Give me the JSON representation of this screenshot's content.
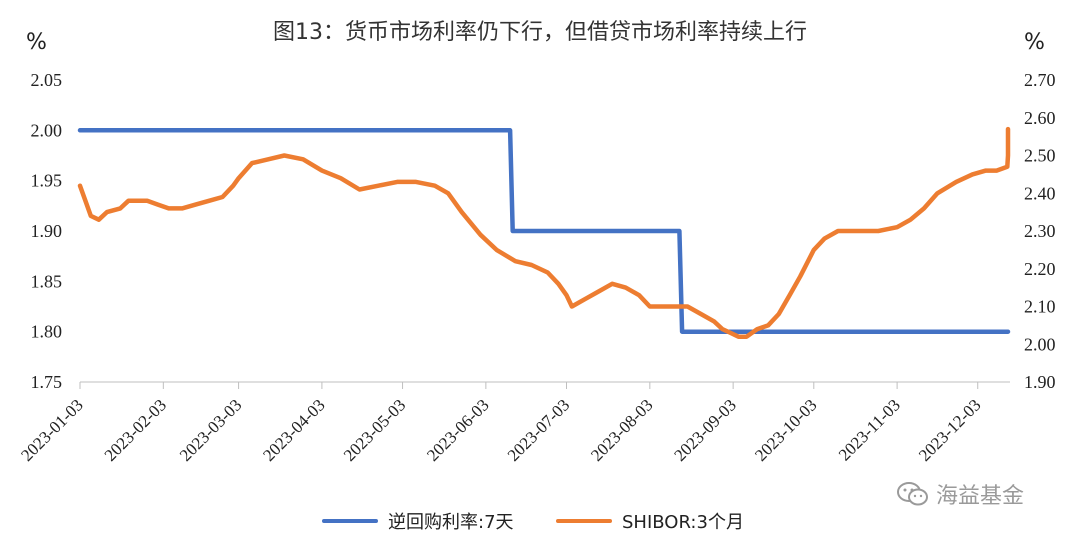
{
  "chart_data": {
    "type": "line",
    "title": "图13：货币市场利率仍下行，但借贷市场利率持续上行",
    "left_axis": {
      "unit": "%",
      "range": [
        1.75,
        2.05
      ],
      "ticks": [
        "1.75",
        "1.80",
        "1.85",
        "1.90",
        "1.95",
        "2.00",
        "2.05"
      ]
    },
    "right_axis": {
      "unit": "%",
      "range": [
        1.9,
        2.7
      ],
      "ticks": [
        "1.90",
        "2.00",
        "2.10",
        "2.20",
        "2.30",
        "2.40",
        "2.50",
        "2.60",
        "2.70"
      ]
    },
    "x_ticks": [
      "2023-01-03",
      "2023-02-03",
      "2023-03-03",
      "2023-04-03",
      "2023-05-03",
      "2023-06-03",
      "2023-07-03",
      "2023-08-03",
      "2023-09-03",
      "2023-10-03",
      "2023-11-03",
      "2023-12-03"
    ],
    "x_range": [
      "2023-01-03",
      "2023-12-15"
    ],
    "grid": true,
    "legend_position": "bottom",
    "series": [
      {
        "name": "逆回购利率:7天",
        "axis": "left",
        "color": "#4472C4",
        "points": [
          [
            "2023-01-03",
            2.0
          ],
          [
            "2023-06-12",
            2.0
          ],
          [
            "2023-06-13",
            1.9
          ],
          [
            "2023-08-14",
            1.9
          ],
          [
            "2023-08-15",
            1.8
          ],
          [
            "2023-12-15",
            1.8
          ]
        ]
      },
      {
        "name": "SHIBOR:3个月",
        "axis": "right",
        "color": "#ED7D31",
        "points": [
          [
            "2023-01-03",
            2.42
          ],
          [
            "2023-01-05",
            2.38
          ],
          [
            "2023-01-07",
            2.34
          ],
          [
            "2023-01-10",
            2.33
          ],
          [
            "2023-01-13",
            2.35
          ],
          [
            "2023-01-18",
            2.36
          ],
          [
            "2023-01-21",
            2.38
          ],
          [
            "2023-01-28",
            2.38
          ],
          [
            "2023-02-01",
            2.37
          ],
          [
            "2023-02-05",
            2.36
          ],
          [
            "2023-02-10",
            2.36
          ],
          [
            "2023-02-15",
            2.37
          ],
          [
            "2023-02-20",
            2.38
          ],
          [
            "2023-02-25",
            2.39
          ],
          [
            "2023-03-01",
            2.42
          ],
          [
            "2023-03-03",
            2.44
          ],
          [
            "2023-03-08",
            2.48
          ],
          [
            "2023-03-14",
            2.49
          ],
          [
            "2023-03-20",
            2.5
          ],
          [
            "2023-03-27",
            2.49
          ],
          [
            "2023-04-03",
            2.46
          ],
          [
            "2023-04-10",
            2.44
          ],
          [
            "2023-04-17",
            2.41
          ],
          [
            "2023-04-24",
            2.42
          ],
          [
            "2023-05-01",
            2.43
          ],
          [
            "2023-05-08",
            2.43
          ],
          [
            "2023-05-15",
            2.42
          ],
          [
            "2023-05-20",
            2.4
          ],
          [
            "2023-05-25",
            2.35
          ],
          [
            "2023-06-01",
            2.29
          ],
          [
            "2023-06-07",
            2.25
          ],
          [
            "2023-06-14",
            2.22
          ],
          [
            "2023-06-20",
            2.21
          ],
          [
            "2023-06-26",
            2.19
          ],
          [
            "2023-06-30",
            2.16
          ],
          [
            "2023-07-03",
            2.13
          ],
          [
            "2023-07-05",
            2.1
          ],
          [
            "2023-07-10",
            2.12
          ],
          [
            "2023-07-15",
            2.14
          ],
          [
            "2023-07-20",
            2.16
          ],
          [
            "2023-07-25",
            2.15
          ],
          [
            "2023-07-30",
            2.13
          ],
          [
            "2023-08-03",
            2.1
          ],
          [
            "2023-08-10",
            2.1
          ],
          [
            "2023-08-17",
            2.1
          ],
          [
            "2023-08-22",
            2.08
          ],
          [
            "2023-08-27",
            2.06
          ],
          [
            "2023-08-30",
            2.04
          ],
          [
            "2023-09-02",
            2.03
          ],
          [
            "2023-09-05",
            2.02
          ],
          [
            "2023-09-08",
            2.02
          ],
          [
            "2023-09-12",
            2.04
          ],
          [
            "2023-09-16",
            2.05
          ],
          [
            "2023-09-20",
            2.08
          ],
          [
            "2023-09-24",
            2.13
          ],
          [
            "2023-09-28",
            2.18
          ],
          [
            "2023-10-03",
            2.25
          ],
          [
            "2023-10-07",
            2.28
          ],
          [
            "2023-10-12",
            2.3
          ],
          [
            "2023-10-20",
            2.3
          ],
          [
            "2023-10-27",
            2.3
          ],
          [
            "2023-11-03",
            2.31
          ],
          [
            "2023-11-08",
            2.33
          ],
          [
            "2023-11-13",
            2.36
          ],
          [
            "2023-11-18",
            2.4
          ],
          [
            "2023-11-25",
            2.43
          ],
          [
            "2023-12-01",
            2.45
          ],
          [
            "2023-12-06",
            2.46
          ],
          [
            "2023-12-10",
            2.46
          ],
          [
            "2023-12-14",
            2.47
          ],
          [
            "2023-12-20",
            2.5
          ],
          [
            "2023-12-26",
            2.53
          ],
          [
            "2023-12-31",
            2.57
          ]
        ]
      }
    ]
  },
  "watermark": "海益基金"
}
